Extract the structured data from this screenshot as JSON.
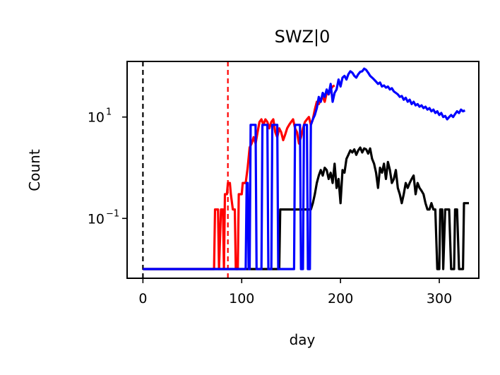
{
  "chart_data": {
    "type": "line",
    "title": "SWZ|0",
    "xlabel": "day",
    "ylabel": "Count",
    "xlim": [
      -16,
      340
    ],
    "ylim": [
      0.0066,
      125
    ],
    "yscale": "log",
    "xticks": [
      0,
      100,
      200,
      300
    ],
    "xtick_labels": [
      "0",
      "100",
      "200",
      "300"
    ],
    "yticks": [
      {
        "value": 10,
        "base": "10",
        "exp": "1"
      },
      {
        "value": 0.1,
        "base": "10",
        "exp": "−1"
      }
    ],
    "grid": false,
    "vlines": [
      {
        "x": 0,
        "color": "#000000",
        "style": "dashed"
      },
      {
        "x": 86,
        "color": "#ff0000",
        "style": "dashed"
      }
    ],
    "series": [
      {
        "color": "#ff0000",
        "points": [
          [
            0,
            0.01
          ],
          [
            72,
            0.01
          ],
          [
            73,
            0.15
          ],
          [
            76,
            0.15
          ],
          [
            77,
            0.01
          ],
          [
            79,
            0.15
          ],
          [
            81,
            0.15
          ],
          [
            82,
            0.01
          ],
          [
            83,
            0.3
          ],
          [
            85,
            0.3
          ],
          [
            86,
            0.5
          ],
          [
            88,
            0.5
          ],
          [
            89,
            0.3
          ],
          [
            91,
            0.15
          ],
          [
            93,
            0.15
          ],
          [
            94,
            0.01
          ],
          [
            96,
            0.01
          ],
          [
            97,
            0.3
          ],
          [
            100,
            0.3
          ],
          [
            101,
            0.5
          ],
          [
            104,
            0.5
          ],
          [
            106,
            1.0
          ],
          [
            108,
            2.5
          ],
          [
            110,
            3.0
          ],
          [
            112,
            4.0
          ],
          [
            114,
            3.0
          ],
          [
            116,
            5.0
          ],
          [
            118,
            8.0
          ],
          [
            120,
            9.0
          ],
          [
            122,
            7.0
          ],
          [
            124,
            9.0
          ],
          [
            126,
            8.0
          ],
          [
            128,
            6.0
          ],
          [
            130,
            8.0
          ],
          [
            132,
            9.0
          ],
          [
            134,
            5.0
          ],
          [
            136,
            4.0
          ],
          [
            138,
            6.0
          ],
          [
            140,
            5.0
          ],
          [
            142,
            3.5
          ],
          [
            144,
            4.5
          ],
          [
            146,
            6.0
          ],
          [
            148,
            7.0
          ],
          [
            150,
            8.0
          ],
          [
            152,
            9.0
          ],
          [
            154,
            6.0
          ],
          [
            156,
            5.0
          ],
          [
            158,
            3.0
          ],
          [
            160,
            4.0
          ],
          [
            162,
            6.0
          ],
          [
            164,
            8.0
          ],
          [
            166,
            9.0
          ],
          [
            168,
            10.0
          ],
          [
            170,
            7.0
          ],
          [
            172,
            9.0
          ],
          [
            174,
            14.0
          ],
          [
            176,
            20.0
          ],
          [
            178,
            18.0
          ],
          [
            180,
            22.0
          ],
          [
            182,
            25.0
          ],
          [
            184,
            20.0
          ],
          [
            186,
            30.0
          ],
          [
            188,
            28.0
          ],
          [
            190,
            35.0
          ],
          [
            192,
            40.0
          ],
          [
            194,
            42.0
          ]
        ]
      },
      {
        "color": "#000000",
        "points": [
          [
            0,
            0.01
          ],
          [
            138,
            0.01
          ],
          [
            139,
            0.15
          ],
          [
            170,
            0.15
          ],
          [
            172,
            0.2
          ],
          [
            174,
            0.3
          ],
          [
            176,
            0.5
          ],
          [
            178,
            0.7
          ],
          [
            180,
            0.9
          ],
          [
            182,
            0.7
          ],
          [
            184,
            1.0
          ],
          [
            186,
            0.9
          ],
          [
            188,
            0.6
          ],
          [
            190,
            0.8
          ],
          [
            192,
            0.5
          ],
          [
            194,
            1.2
          ],
          [
            196,
            0.4
          ],
          [
            198,
            0.6
          ],
          [
            200,
            0.2
          ],
          [
            202,
            0.9
          ],
          [
            204,
            0.8
          ],
          [
            206,
            1.5
          ],
          [
            208,
            1.8
          ],
          [
            210,
            2.2
          ],
          [
            212,
            2.0
          ],
          [
            214,
            2.3
          ],
          [
            216,
            1.8
          ],
          [
            218,
            2.2
          ],
          [
            220,
            2.5
          ],
          [
            222,
            2.0
          ],
          [
            224,
            2.4
          ],
          [
            226,
            2.3
          ],
          [
            228,
            1.9
          ],
          [
            230,
            2.4
          ],
          [
            232,
            1.5
          ],
          [
            234,
            1.2
          ],
          [
            236,
            0.8
          ],
          [
            238,
            0.4
          ],
          [
            240,
            1.0
          ],
          [
            242,
            0.8
          ],
          [
            244,
            1.2
          ],
          [
            246,
            0.6
          ],
          [
            248,
            1.3
          ],
          [
            250,
            0.9
          ],
          [
            252,
            0.5
          ],
          [
            254,
            0.6
          ],
          [
            256,
            0.9
          ],
          [
            258,
            0.4
          ],
          [
            260,
            0.3
          ],
          [
            262,
            0.2
          ],
          [
            264,
            0.3
          ],
          [
            266,
            0.5
          ],
          [
            268,
            0.4
          ],
          [
            270,
            0.5
          ],
          [
            272,
            0.6
          ],
          [
            274,
            0.7
          ],
          [
            276,
            0.3
          ],
          [
            278,
            0.5
          ],
          [
            280,
            0.4
          ],
          [
            282,
            0.35
          ],
          [
            284,
            0.3
          ],
          [
            286,
            0.2
          ],
          [
            288,
            0.15
          ],
          [
            290,
            0.15
          ],
          [
            292,
            0.2
          ],
          [
            294,
            0.15
          ],
          [
            296,
            0.15
          ],
          [
            298,
            0.01
          ],
          [
            300,
            0.01
          ],
          [
            301,
            0.15
          ],
          [
            303,
            0.15
          ],
          [
            304,
            0.01
          ],
          [
            306,
            0.15
          ],
          [
            310,
            0.15
          ],
          [
            312,
            0.01
          ],
          [
            315,
            0.01
          ],
          [
            316,
            0.15
          ],
          [
            318,
            0.15
          ],
          [
            320,
            0.01
          ],
          [
            324,
            0.01
          ],
          [
            325,
            0.2
          ],
          [
            327,
            0.2
          ],
          [
            330,
            0.2
          ]
        ]
      },
      {
        "color": "#0000ff",
        "points": [
          [
            0,
            0.01
          ],
          [
            104,
            0.01
          ],
          [
            105,
            0.5
          ],
          [
            106,
            0.5
          ],
          [
            107,
            0.01
          ],
          [
            108,
            0.01
          ],
          [
            109,
            7.0
          ],
          [
            114,
            7.0
          ],
          [
            115,
            0.01
          ],
          [
            120,
            0.01
          ],
          [
            121,
            7.0
          ],
          [
            126,
            7.0
          ],
          [
            127,
            0.01
          ],
          [
            130,
            0.01
          ],
          [
            131,
            7.0
          ],
          [
            136,
            7.0
          ],
          [
            137,
            0.01
          ],
          [
            153,
            0.01
          ],
          [
            154,
            7.0
          ],
          [
            159,
            7.0
          ],
          [
            160,
            0.01
          ],
          [
            162,
            0.01
          ],
          [
            163,
            7.0
          ],
          [
            166,
            7.0
          ],
          [
            167,
            0.01
          ],
          [
            169,
            0.01
          ],
          [
            170,
            7.0
          ],
          [
            172,
            9.0
          ],
          [
            174,
            11.0
          ],
          [
            176,
            15.0
          ],
          [
            178,
            25.0
          ],
          [
            180,
            20.0
          ],
          [
            182,
            30.0
          ],
          [
            184,
            25.0
          ],
          [
            186,
            35.0
          ],
          [
            188,
            28.0
          ],
          [
            190,
            45.0
          ],
          [
            192,
            20.0
          ],
          [
            194,
            30.0
          ],
          [
            196,
            35.0
          ],
          [
            198,
            55.0
          ],
          [
            200,
            40.0
          ],
          [
            202,
            60.0
          ],
          [
            204,
            65.0
          ],
          [
            206,
            55.0
          ],
          [
            208,
            70.0
          ],
          [
            210,
            80.0
          ],
          [
            212,
            75.0
          ],
          [
            214,
            65.0
          ],
          [
            216,
            60.0
          ],
          [
            218,
            70.0
          ],
          [
            220,
            78.0
          ],
          [
            222,
            80.0
          ],
          [
            224,
            90.0
          ],
          [
            226,
            85.0
          ],
          [
            228,
            75.0
          ],
          [
            230,
            65.0
          ],
          [
            232,
            60.0
          ],
          [
            234,
            55.0
          ],
          [
            236,
            50.0
          ],
          [
            238,
            45.0
          ],
          [
            240,
            48.0
          ],
          [
            242,
            40.0
          ],
          [
            244,
            42.0
          ],
          [
            246,
            38.0
          ],
          [
            248,
            40.0
          ],
          [
            250,
            35.0
          ],
          [
            252,
            37.0
          ],
          [
            254,
            32.0
          ],
          [
            256,
            30.0
          ],
          [
            258,
            28.0
          ],
          [
            260,
            25.0
          ],
          [
            262,
            26.0
          ],
          [
            264,
            22.0
          ],
          [
            266,
            24.0
          ],
          [
            268,
            20.0
          ],
          [
            270,
            22.0
          ],
          [
            272,
            18.0
          ],
          [
            274,
            20.0
          ],
          [
            276,
            17.0
          ],
          [
            278,
            18.0
          ],
          [
            280,
            16.0
          ],
          [
            282,
            17.0
          ],
          [
            284,
            15.0
          ],
          [
            286,
            16.0
          ],
          [
            288,
            14.0
          ],
          [
            290,
            15.0
          ],
          [
            292,
            13.0
          ],
          [
            294,
            14.0
          ],
          [
            296,
            12.0
          ],
          [
            298,
            13.0
          ],
          [
            300,
            11.0
          ],
          [
            302,
            12.0
          ],
          [
            304,
            10.0
          ],
          [
            306,
            10.5
          ],
          [
            308,
            9.0
          ],
          [
            310,
            10.0
          ],
          [
            312,
            11.0
          ],
          [
            314,
            10.0
          ],
          [
            316,
            11.5
          ],
          [
            318,
            13.0
          ],
          [
            320,
            12.0
          ],
          [
            322,
            14.0
          ],
          [
            324,
            13.0
          ],
          [
            326,
            13.5
          ]
        ]
      }
    ]
  }
}
